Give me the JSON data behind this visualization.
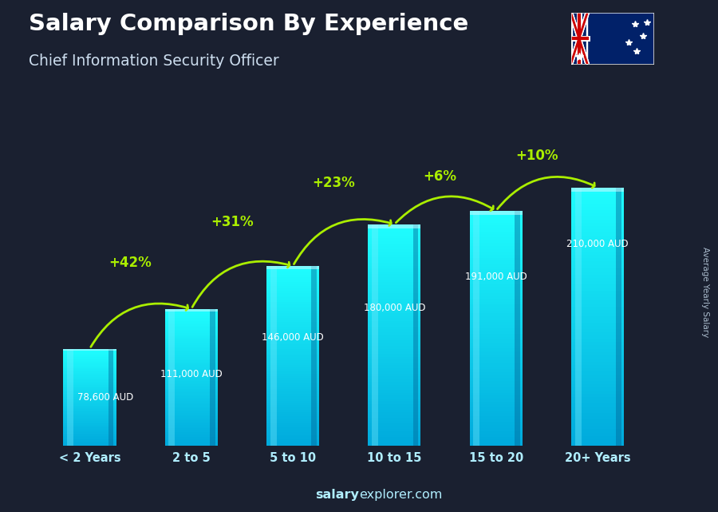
{
  "title": "Salary Comparison By Experience",
  "subtitle": "Chief Information Security Officer",
  "categories": [
    "< 2 Years",
    "2 to 5",
    "5 to 10",
    "10 to 15",
    "15 to 20",
    "20+ Years"
  ],
  "values": [
    78600,
    111000,
    146000,
    180000,
    191000,
    210000
  ],
  "salary_labels": [
    "78,600 AUD",
    "111,000 AUD",
    "146,000 AUD",
    "180,000 AUD",
    "191,000 AUD",
    "210,000 AUD"
  ],
  "pct_changes": [
    "+42%",
    "+31%",
    "+23%",
    "+6%",
    "+10%"
  ],
  "bar_color_main": "#00c8f0",
  "bar_color_left": "#40d8ff",
  "bar_color_right": "#0088bb",
  "bg_color": "#1a2030",
  "text_color": "#ffffff",
  "green_color": "#aaee00",
  "cyan_label": "#b0eeff",
  "ylabel": "Average Yearly Salary",
  "footer_bold": "salary",
  "footer_normal": "explorer.com",
  "ylim": [
    0,
    250000
  ],
  "bar_width": 0.52
}
